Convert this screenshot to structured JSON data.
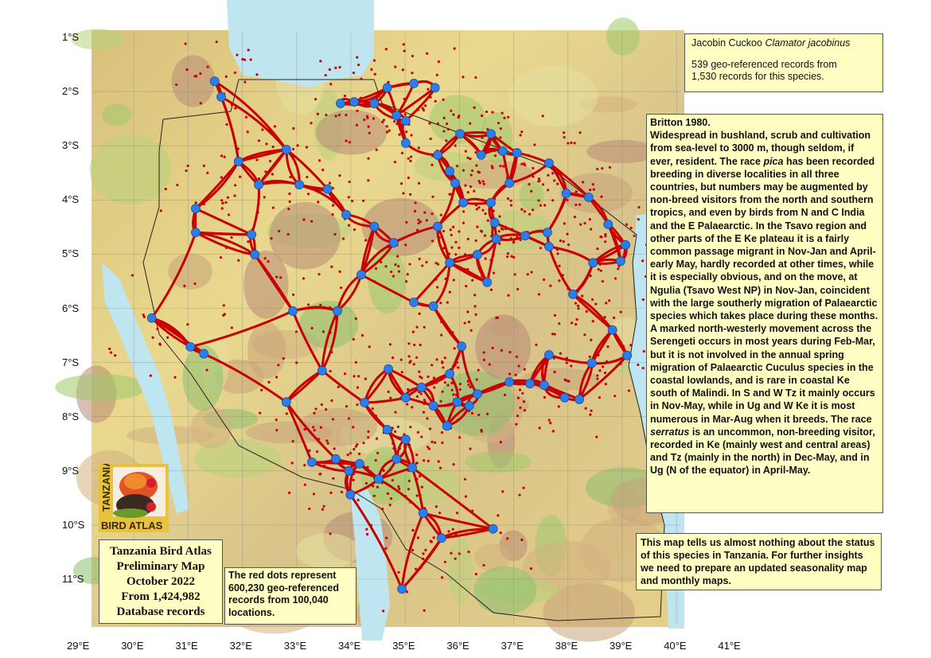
{
  "species": {
    "common_name": "Jacobin Cuckoo",
    "scientific_name": "Clamator jacobinus",
    "records_line1": "539 geo-referenced records from",
    "records_line2": "1,530 records for this species."
  },
  "britton": {
    "heading": "Britton 1980.",
    "text_part1": "Widespread in bushland, scrub and cultivation from sea-level to 3000 m, though seldom, if ever, resident. The race ",
    "race1": "pica",
    "text_part2": " has been recorded breeding in diverse localities in all three countries, but numbers may be augmented by non-breed visitors from the north and southern tropics, and even by birds from N and C India and the E Palaearctic. In the Tsavo region and other parts of the E Ke plateau it is a fairly common passage migrant in Nov-Jan and April-early May, hardly recorded at other times, while it is especially obvious, and on the move, at Ngulia (Tsavo West NP) in Nov-Jan, coincident with the large southerly migration of Palaearctic species which takes place during these months. A marked north-westerly movement across the Serengeti occurs in most years during Feb-Mar, but it is not involved in the annual spring migration of Palaearctic Cuculus species in the coastal lowlands, and is rare in coastal Ke south of Malindi. In S and W Tz it mainly occurs in Nov-May, while in Ug and W Ke it is most numerous in Mar-Aug when it breeds. The race ",
    "race2": "serratus",
    "text_part3": " is an uncommon, non-breeding visitor, recorded in Ke (mainly west and central areas) and Tz (mainly in the north) in Dec-May, and in Ug (N of the equator) in April-May."
  },
  "note": "This map tells us almost nothing about the status of this species in Tanzania. For further insights we need to prepare an updated seasonality map and monthly maps.",
  "atlas_box": {
    "line1": "Tanzania Bird Atlas",
    "line2": "Preliminary Map",
    "line3": "October 2022",
    "line4": "From 1,424,982",
    "line5": "Database records"
  },
  "red_dots_note": "The red dots represent 600,230 geo-referenced records from 100,040 locations.",
  "logo": {
    "text_vertical": "TANZANIA",
    "text_bottom": "BIRD ATLAS"
  },
  "axes": {
    "latitude_labels": [
      "1°S",
      "2°S",
      "3°S",
      "4°S",
      "5°S",
      "6°S",
      "7°S",
      "8°S",
      "9°S",
      "10°S",
      "11°S"
    ],
    "longitude_labels": [
      "29°E",
      "30°E",
      "31°E",
      "32°E",
      "33°E",
      "34°E",
      "35°E",
      "36°E",
      "37°E",
      "38°E",
      "39°E",
      "40°E",
      "41°E"
    ]
  },
  "colors": {
    "species_records": "#2b7de9",
    "all_records": "#c80000",
    "text_box": "#ffffc4",
    "water": "#bfe6f0"
  },
  "species_records_lon_lat_S": [
    [
      31.49,
      1.81
    ],
    [
      31.61,
      2.1
    ],
    [
      31.93,
      3.29
    ],
    [
      32.3,
      3.72
    ],
    [
      32.81,
      3.07
    ],
    [
      33.05,
      3.72
    ],
    [
      33.57,
      3.8
    ],
    [
      33.81,
      2.22
    ],
    [
      34.06,
      2.19
    ],
    [
      34.43,
      2.22
    ],
    [
      34.67,
      1.93
    ],
    [
      34.84,
      2.44
    ],
    [
      35.01,
      2.54
    ],
    [
      35.16,
      1.85
    ],
    [
      35.55,
      1.93
    ],
    [
      35.01,
      2.95
    ],
    [
      35.6,
      3.17
    ],
    [
      36.01,
      2.78
    ],
    [
      36.58,
      2.78
    ],
    [
      36.4,
      3.17
    ],
    [
      36.8,
      3.1
    ],
    [
      37.06,
      3.13
    ],
    [
      36.92,
      3.69
    ],
    [
      37.65,
      3.32
    ],
    [
      35.82,
      3.47
    ],
    [
      35.92,
      3.69
    ],
    [
      36.07,
      4.05
    ],
    [
      36.58,
      4.05
    ],
    [
      36.65,
      4.42
    ],
    [
      36.68,
      4.72
    ],
    [
      37.21,
      4.66
    ],
    [
      37.62,
      4.6
    ],
    [
      37.97,
      3.88
    ],
    [
      38.38,
      3.95
    ],
    [
      38.74,
      4.45
    ],
    [
      39.06,
      4.83
    ],
    [
      38.46,
      5.16
    ],
    [
      38.97,
      5.13
    ],
    [
      37.65,
      4.86
    ],
    [
      36.33,
      5.01
    ],
    [
      35.6,
      4.49
    ],
    [
      35.82,
      5.16
    ],
    [
      36.51,
      5.52
    ],
    [
      35.52,
      5.96
    ],
    [
      35.16,
      5.89
    ],
    [
      34.79,
      4.79
    ],
    [
      34.43,
      4.49
    ],
    [
      33.91,
      4.27
    ],
    [
      34.19,
      5.38
    ],
    [
      33.75,
      6.05
    ],
    [
      32.93,
      6.05
    ],
    [
      32.23,
      5.01
    ],
    [
      31.14,
      4.16
    ],
    [
      31.14,
      4.6
    ],
    [
      32.17,
      4.64
    ],
    [
      31.04,
      6.71
    ],
    [
      31.29,
      6.84
    ],
    [
      30.33,
      6.18
    ],
    [
      38.09,
      5.74
    ],
    [
      38.82,
      6.4
    ],
    [
      37.65,
      6.86
    ],
    [
      38.44,
      7.01
    ],
    [
      39.09,
      6.87
    ],
    [
      36.04,
      6.7
    ],
    [
      35.82,
      7.21
    ],
    [
      35.3,
      7.46
    ],
    [
      35.01,
      7.65
    ],
    [
      35.52,
      7.8
    ],
    [
      35.96,
      7.73
    ],
    [
      36.18,
      7.8
    ],
    [
      35.77,
      8.17
    ],
    [
      36.92,
      7.36
    ],
    [
      37.3,
      7.39
    ],
    [
      36.33,
      7.58
    ],
    [
      37.56,
      7.42
    ],
    [
      37.94,
      7.65
    ],
    [
      38.21,
      7.68
    ],
    [
      34.69,
      7.12
    ],
    [
      34.25,
      7.74
    ],
    [
      33.47,
      7.15
    ],
    [
      32.81,
      7.73
    ],
    [
      33.28,
      8.84
    ],
    [
      33.72,
      8.78
    ],
    [
      33.96,
      9.0
    ],
    [
      34.16,
      8.87
    ],
    [
      33.99,
      9.44
    ],
    [
      34.51,
      9.15
    ],
    [
      34.84,
      8.78
    ],
    [
      34.67,
      8.24
    ],
    [
      35.01,
      8.42
    ],
    [
      35.13,
      8.94
    ],
    [
      35.33,
      9.78
    ],
    [
      35.67,
      10.24
    ],
    [
      36.62,
      10.07
    ],
    [
      34.94,
      11.18
    ]
  ]
}
